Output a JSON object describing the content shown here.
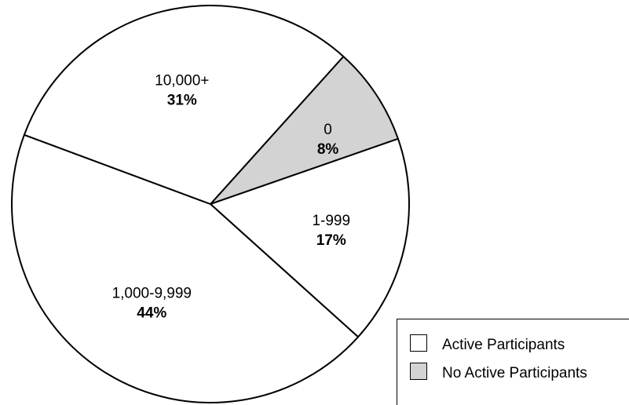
{
  "chart_data": {
    "type": "pie",
    "title": "",
    "slices": [
      {
        "label": "0",
        "value": 8,
        "percent_label": "8%",
        "group": "No Active Participants"
      },
      {
        "label": "1-999",
        "value": 17,
        "percent_label": "17%",
        "group": "Active Participants"
      },
      {
        "label": "1,000-9,999",
        "value": 44,
        "percent_label": "44%",
        "group": "Active Participants"
      },
      {
        "label": "10,000+",
        "value": 31,
        "percent_label": "31%",
        "group": "Active Participants"
      }
    ],
    "legend": {
      "placement": "bottom-right",
      "items": [
        {
          "label": "Active Participants",
          "color": "#ffffff"
        },
        {
          "label": "No Active Participants",
          "color": "#d3d3d3"
        }
      ]
    },
    "colors": {
      "Active Participants": "#ffffff",
      "No Active Participants": "#d3d3d3",
      "outline": "#000000"
    }
  }
}
